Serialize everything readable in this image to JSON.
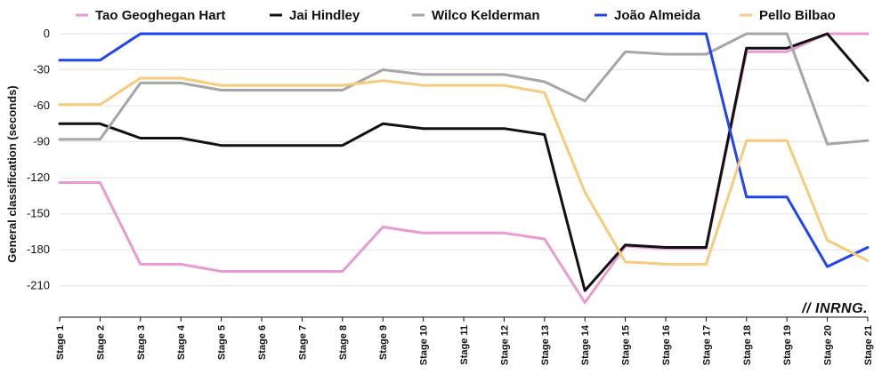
{
  "chart_data": {
    "type": "line",
    "title": "",
    "xlabel": "",
    "ylabel": "General classification (seconds)",
    "ylim": [
      -225,
      0
    ],
    "yticks": [
      0,
      -30,
      -60,
      -90,
      -120,
      -150,
      -180,
      -210
    ],
    "grid": true,
    "legend_position": "top",
    "categories": [
      "Stage 1",
      "Stage 2",
      "Stage 3",
      "Stage 4",
      "Stage 5",
      "Stage 6",
      "Stage 7",
      "Stage 8",
      "Stage 9",
      "Stage 10",
      "Stage 11",
      "Stage 12",
      "Stage 13",
      "Stage 14",
      "Stage 15",
      "Stage 16",
      "Stage 17",
      "Stage 18",
      "Stage 19",
      "Stage 20",
      "Stage 21"
    ],
    "series": [
      {
        "name": "Tao Geoghegan Hart",
        "color": "#e89ad3",
        "values": [
          -124,
          -124,
          -192,
          -192,
          -198,
          -198,
          -198,
          -198,
          -161,
          -166,
          -166,
          -166,
          -171,
          -224,
          -177,
          -179,
          -179,
          -15,
          -15,
          0,
          0
        ]
      },
      {
        "name": "Jai Hindley",
        "color": "#111111",
        "values": [
          -75,
          -75,
          -87,
          -87,
          -93,
          -93,
          -93,
          -93,
          -75,
          -79,
          -79,
          -79,
          -84,
          -214,
          -176,
          -178,
          -178,
          -12,
          -12,
          0,
          -39
        ]
      },
      {
        "name": "Wilco Kelderman",
        "color": "#a6a6a6",
        "values": [
          -88,
          -88,
          -41,
          -41,
          -47,
          -47,
          -47,
          -47,
          -30,
          -34,
          -34,
          -34,
          -40,
          -56,
          -15,
          -17,
          -17,
          0,
          0,
          -92,
          -89
        ]
      },
      {
        "name": "João Almeida",
        "color": "#1f45ee",
        "values": [
          -22,
          -22,
          0,
          0,
          0,
          0,
          0,
          0,
          0,
          0,
          0,
          0,
          0,
          0,
          0,
          0,
          0,
          -136,
          -136,
          -194,
          -178
        ]
      },
      {
        "name": "Pello Bilbao",
        "color": "#f7cb7c",
        "values": [
          -59,
          -59,
          -37,
          -37,
          -43,
          -43,
          -43,
          -43,
          -39,
          -43,
          -43,
          -43,
          -49,
          -132,
          -190,
          -192,
          -192,
          -89,
          -89,
          -172,
          -189
        ]
      }
    ]
  },
  "watermark": "// INRNG."
}
